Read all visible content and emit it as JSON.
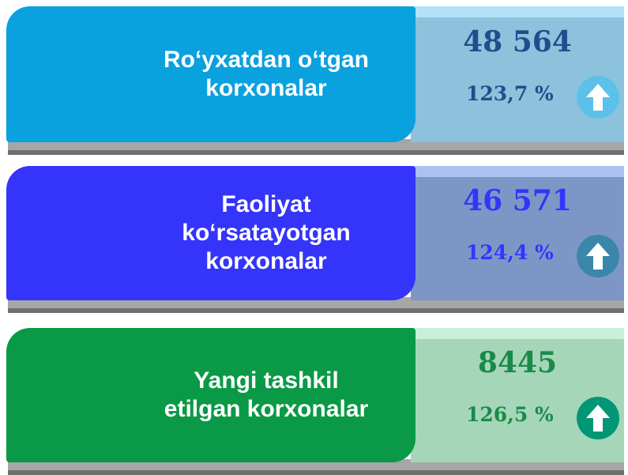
{
  "cards": [
    {
      "label": [
        "Ro‘yxatdan o‘tgan",
        "korxonalar"
      ],
      "value": "48 564",
      "percent": "123,7 %"
    },
    {
      "label": [
        "Faoliyat",
        "ko‘rsatayotgan",
        "korxonalar"
      ],
      "value": "46 571",
      "percent": "124,4 %"
    },
    {
      "label": [
        "Yangi tashkil",
        "etilgan korxonalar"
      ],
      "value": "8445",
      "percent": "126,5 %"
    }
  ]
}
